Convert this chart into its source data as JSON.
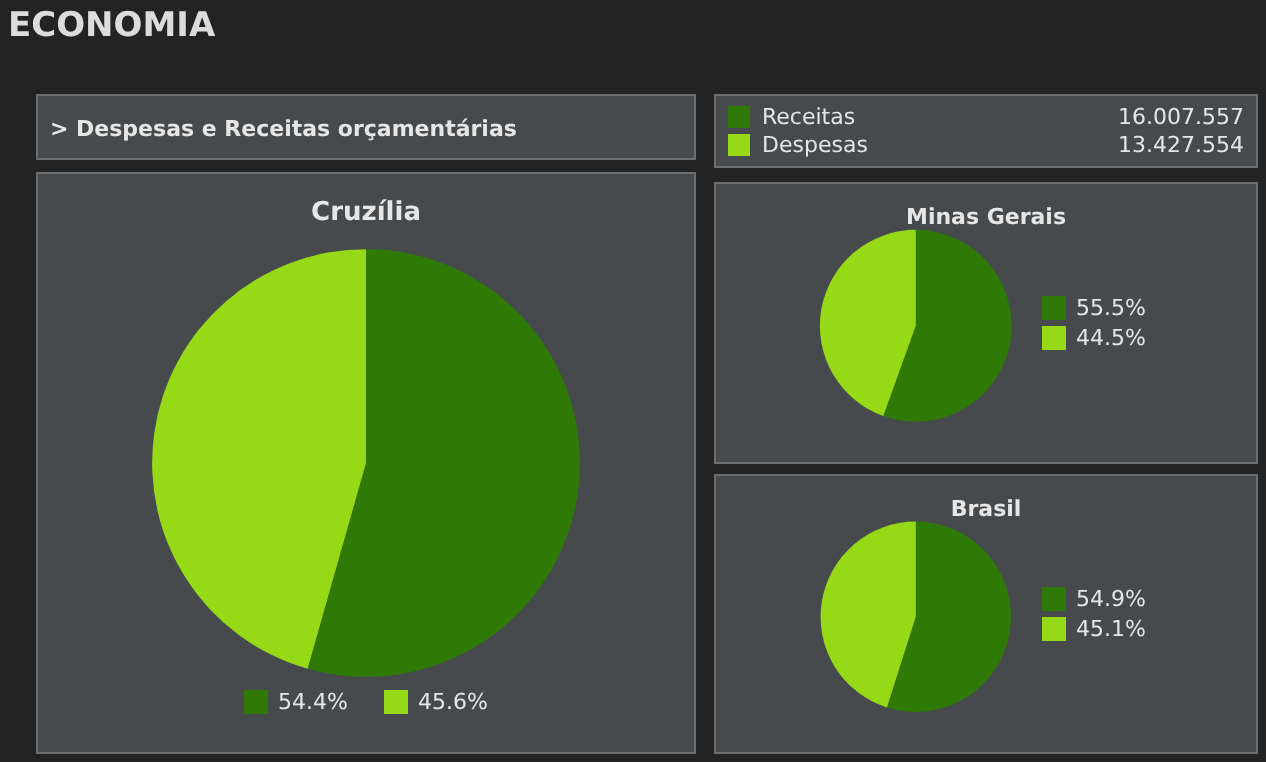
{
  "chart_data": [
    {
      "type": "other",
      "title": "ECONOMIA",
      "annotations": [
        "> Despesas e Receitas orçamentárias"
      ]
    },
    {
      "type": "other",
      "categories": [
        "Receitas",
        "Despesas"
      ],
      "value_labels": [
        "16.007.557",
        "13.427.554"
      ],
      "colors": [
        "#2f7a06",
        "#96d916"
      ]
    },
    {
      "type": "pie",
      "title": "Cruzília",
      "categories": [
        "54.4%",
        "45.6%"
      ],
      "values": [
        54.4,
        45.6
      ],
      "colors": [
        "#2f7a06",
        "#96d916"
      ],
      "legend": "bottom"
    },
    {
      "type": "pie",
      "title": "Minas Gerais",
      "categories": [
        "55.5%",
        "44.5%"
      ],
      "values": [
        55.5,
        44.5
      ],
      "colors": [
        "#2f7a06",
        "#96d916"
      ],
      "legend": "right"
    },
    {
      "type": "pie",
      "title": "Brasil",
      "categories": [
        "54.9%",
        "45.1%"
      ],
      "values": [
        54.9,
        45.1
      ],
      "colors": [
        "#2f7a06",
        "#96d916"
      ],
      "legend": "right"
    }
  ]
}
